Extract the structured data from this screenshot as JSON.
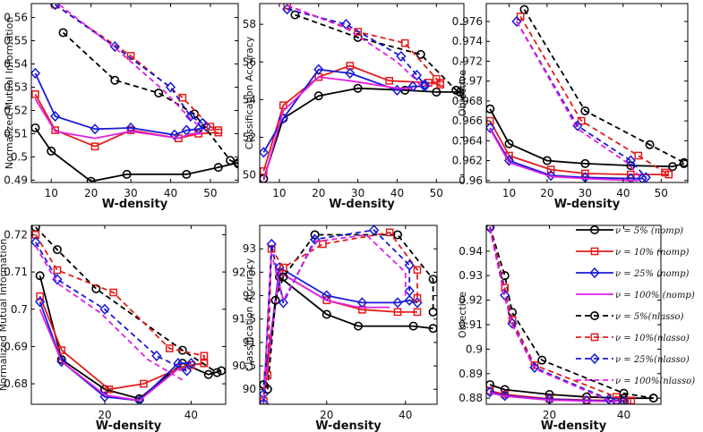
{
  "series_styles": [
    {
      "key": "k_nomp",
      "color": "#000000",
      "dash": false,
      "marker": "circle"
    },
    {
      "key": "r_nomp",
      "color": "#e41c1c",
      "dash": false,
      "marker": "square"
    },
    {
      "key": "b_nomp",
      "color": "#1a1ad8",
      "dash": false,
      "marker": "diamond"
    },
    {
      "key": "m_nomp",
      "color": "#e21ee2",
      "dash": false,
      "marker": "none"
    },
    {
      "key": "k_nl",
      "color": "#000000",
      "dash": true,
      "marker": "circle"
    },
    {
      "key": "r_nl",
      "color": "#e41c1c",
      "dash": true,
      "marker": "square"
    },
    {
      "key": "b_nl",
      "color": "#1a1ad8",
      "dash": true,
      "marker": "diamond"
    },
    {
      "key": "m_nl",
      "color": "#e21ee2",
      "dash": true,
      "marker": "none"
    }
  ],
  "legend": [
    "ν = 5% (nomp)",
    "ν = 10% (nomp)",
    "ν = 25% (nomp)",
    "ν = 100% (nomp)",
    "ν = 5%(nlasso)",
    "ν = 10%(nlasso)",
    "ν = 25%(nlasso)",
    "ν = 100%(nlasso)"
  ],
  "chart_data": [
    {
      "type": "line",
      "xlabel": "W-density",
      "ylabel": "Normalized Mutual Information",
      "xlim": [
        5,
        57
      ],
      "ylim": [
        0.489,
        0.566
      ],
      "xticks": [
        10,
        20,
        30,
        40,
        50
      ],
      "yticks": [
        0.49,
        0.5,
        0.51,
        0.52,
        0.53,
        0.54,
        0.55,
        0.56
      ],
      "ytick_labels": [
        "0.49",
        "0.5",
        "0.51",
        "0.52",
        "0.53",
        "0.54",
        "0.55",
        "0.56"
      ],
      "series": [
        {
          "name": "k_nomp",
          "x": [
            6,
            10,
            20,
            29,
            44,
            52,
            57
          ],
          "y": [
            0.5125,
            0.5025,
            0.4895,
            0.4925,
            0.4925,
            0.4955,
            0.4975
          ]
        },
        {
          "name": "r_nomp",
          "x": [
            6,
            11,
            21,
            30,
            42,
            47,
            52
          ],
          "y": [
            0.527,
            0.5115,
            0.5045,
            0.5115,
            0.508,
            0.51,
            0.5105
          ]
        },
        {
          "name": "b_nomp",
          "x": [
            6,
            11,
            21,
            30,
            41,
            44,
            47,
            49
          ],
          "y": [
            0.536,
            0.5175,
            0.512,
            0.5125,
            0.5095,
            0.5115,
            0.512,
            0.513
          ]
        },
        {
          "name": "m_nomp",
          "x": [
            6,
            11,
            21,
            30,
            42,
            45,
            48
          ],
          "y": [
            0.525,
            0.511,
            0.508,
            0.511,
            0.508,
            0.51,
            0.51
          ]
        },
        {
          "name": "k_nl",
          "x": [
            13,
            26,
            37,
            46,
            55,
            57
          ],
          "y": [
            0.5535,
            0.533,
            0.5275,
            0.5185,
            0.4985,
            0.497
          ]
        },
        {
          "name": "r_nl",
          "x": [
            11,
            30,
            43,
            50,
            52
          ],
          "y": [
            0.5655,
            0.5435,
            0.5255,
            0.513,
            0.5115
          ]
        },
        {
          "name": "b_nl",
          "x": [
            11,
            26,
            40,
            45,
            48
          ],
          "y": [
            0.5655,
            0.5475,
            0.53,
            0.5175,
            0.5145
          ]
        },
        {
          "name": "m_nl",
          "x": [
            12,
            26,
            38,
            45,
            47
          ],
          "y": [
            0.5655,
            0.547,
            0.529,
            0.5165,
            0.5135
          ]
        }
      ]
    },
    {
      "type": "line",
      "xlabel": "W-density",
      "ylabel": "Classification Accuracy",
      "xlim": [
        5,
        57
      ],
      "ylim": [
        49.6,
        59.1
      ],
      "xticks": [
        10,
        20,
        30,
        40,
        50
      ],
      "yticks": [
        50,
        52,
        54,
        56,
        58
      ],
      "ytick_labels": [
        "50",
        "52",
        "54",
        "56",
        "58"
      ],
      "series": [
        {
          "name": "k_nomp",
          "x": [
            6,
            11,
            20,
            30,
            42,
            50,
            56
          ],
          "y": [
            49.8,
            53.0,
            54.2,
            54.6,
            54.5,
            54.4,
            54.4
          ]
        },
        {
          "name": "r_nomp",
          "x": [
            6,
            11,
            20,
            28,
            38,
            48,
            51
          ],
          "y": [
            50.2,
            53.7,
            55.2,
            55.8,
            55.0,
            54.9,
            54.8
          ]
        },
        {
          "name": "b_nomp",
          "x": [
            6,
            11,
            20,
            28,
            40,
            44,
            47
          ],
          "y": [
            51.2,
            53.0,
            55.6,
            55.4,
            54.5,
            54.7,
            54.7
          ]
        },
        {
          "name": "m_nomp",
          "x": [
            6,
            11,
            20,
            28,
            40,
            44
          ],
          "y": [
            49.7,
            53.4,
            55.2,
            55.0,
            54.6,
            54.6
          ]
        },
        {
          "name": "k_nl",
          "x": [
            14,
            30,
            46,
            55,
            57
          ],
          "y": [
            58.5,
            57.3,
            56.4,
            54.5,
            54.3
          ]
        },
        {
          "name": "r_nl",
          "x": [
            12,
            30,
            42,
            50,
            51
          ],
          "y": [
            59.0,
            57.6,
            57.0,
            55.1,
            54.9
          ]
        },
        {
          "name": "b_nl",
          "x": [
            12,
            27,
            41,
            45,
            47
          ],
          "y": [
            58.8,
            58.0,
            56.3,
            55.3,
            54.8
          ]
        },
        {
          "name": "m_nl",
          "x": [
            12,
            27,
            40,
            45,
            46
          ],
          "y": [
            59.0,
            57.8,
            56.0,
            55.0,
            54.7
          ]
        }
      ]
    },
    {
      "type": "line",
      "xlabel": "W-density",
      "ylabel": "Objective",
      "xlim": [
        4,
        57
      ],
      "ylim": [
        0.9598,
        0.9778
      ],
      "xticks": [
        10,
        20,
        30,
        40,
        50
      ],
      "yticks": [
        0.96,
        0.962,
        0.964,
        0.966,
        0.968,
        0.97,
        0.972,
        0.974,
        0.976
      ],
      "ytick_labels": [
        "0.96",
        "0.962",
        "0.964",
        "0.966",
        "0.968",
        "0.97",
        "0.972",
        "0.974",
        "0.976"
      ],
      "series": [
        {
          "name": "k_nomp",
          "x": [
            5,
            10,
            20,
            30,
            42,
            53,
            56
          ],
          "y": [
            0.9672,
            0.9637,
            0.962,
            0.9617,
            0.9615,
            0.9614,
            0.9617
          ]
        },
        {
          "name": "r_nomp",
          "x": [
            5,
            10,
            21,
            30,
            42,
            52
          ],
          "y": [
            0.966,
            0.9625,
            0.9611,
            0.9607,
            0.9606,
            0.9606
          ]
        },
        {
          "name": "b_nomp",
          "x": [
            5,
            10,
            21,
            30,
            42,
            45
          ],
          "y": [
            0.9653,
            0.962,
            0.9605,
            0.9603,
            0.9602,
            0.9602
          ]
        },
        {
          "name": "m_nomp",
          "x": [
            5,
            10,
            21,
            30,
            42,
            44
          ],
          "y": [
            0.9652,
            0.9618,
            0.9604,
            0.9602,
            0.96,
            0.96
          ]
        },
        {
          "name": "k_nl",
          "x": [
            14,
            30,
            47,
            56
          ],
          "y": [
            0.9772,
            0.967,
            0.9636,
            0.9618
          ]
        },
        {
          "name": "r_nl",
          "x": [
            13,
            29,
            44,
            51
          ],
          "y": [
            0.9765,
            0.966,
            0.9625,
            0.9608
          ]
        },
        {
          "name": "b_nl",
          "x": [
            12,
            28,
            42,
            46
          ],
          "y": [
            0.976,
            0.9655,
            0.962,
            0.9603
          ]
        },
        {
          "name": "m_nl",
          "x": [
            12,
            28,
            41,
            45
          ],
          "y": [
            0.976,
            0.9652,
            0.9618,
            0.9601
          ]
        }
      ]
    },
    {
      "type": "line",
      "xlabel": "W-density",
      "ylabel": "Normalized Mutual Information",
      "xlim": [
        3,
        48
      ],
      "ylim": [
        0.6745,
        0.7225
      ],
      "xticks": [
        20,
        40
      ],
      "yticks": [
        0.68,
        0.69,
        0.7,
        0.71,
        0.72
      ],
      "ytick_labels": [
        "0.68",
        "0.69",
        "0.7",
        "0.71",
        "0.72"
      ],
      "series": [
        {
          "name": "k_nomp",
          "x": [
            5,
            10,
            20,
            28,
            38,
            44,
            47
          ],
          "y": [
            0.709,
            0.6865,
            0.6785,
            0.676,
            0.6855,
            0.6825,
            0.6835
          ]
        },
        {
          "name": "r_nomp",
          "x": [
            5,
            10,
            21,
            29,
            38,
            40,
            43
          ],
          "y": [
            0.7035,
            0.689,
            0.6785,
            0.68,
            0.6845,
            0.685,
            0.6855
          ]
        },
        {
          "name": "b_nomp",
          "x": [
            5,
            10,
            20,
            28,
            37,
            40
          ],
          "y": [
            0.702,
            0.686,
            0.6765,
            0.6755,
            0.6855,
            0.6855
          ]
        },
        {
          "name": "m_nomp",
          "x": [
            5,
            10,
            20,
            28,
            37,
            39
          ],
          "y": [
            0.7,
            0.686,
            0.677,
            0.6755,
            0.684,
            0.6835
          ]
        },
        {
          "name": "k_nl",
          "x": [
            4,
            9,
            18,
            38,
            46
          ],
          "y": [
            0.722,
            0.716,
            0.7055,
            0.689,
            0.683
          ]
        },
        {
          "name": "r_nl",
          "x": [
            4,
            9,
            22,
            35,
            43,
            43
          ],
          "y": [
            0.72,
            0.7105,
            0.7045,
            0.6895,
            0.6875,
            0.6855
          ]
        },
        {
          "name": "b_nl",
          "x": [
            4,
            9,
            20,
            32,
            39
          ],
          "y": [
            0.718,
            0.708,
            0.7,
            0.6875,
            0.6835
          ]
        },
        {
          "name": "m_nl",
          "x": [
            4,
            9,
            19,
            30,
            38
          ],
          "y": [
            0.717,
            0.707,
            0.699,
            0.6865,
            0.681
          ]
        }
      ]
    },
    {
      "type": "line",
      "xlabel": "W-density",
      "ylabel": "Classification Accuracy",
      "xlim": [
        3,
        48
      ],
      "ylim": [
        89.68,
        93.5
      ],
      "xticks": [
        20,
        40
      ],
      "yticks": [
        90,
        90.5,
        91,
        91.5,
        92,
        92.5,
        93
      ],
      "ytick_labels": [
        "90",
        "90.5",
        "91",
        "91.5",
        "92",
        "92.5",
        "93"
      ],
      "series": [
        {
          "name": "k_nomp",
          "x": [
            4,
            8,
            20,
            28,
            42,
            47
          ],
          "y": [
            90.1,
            92.4,
            91.6,
            91.35,
            91.35,
            91.3
          ]
        },
        {
          "name": "r_nomp",
          "x": [
            4,
            8,
            20,
            29,
            38,
            43
          ],
          "y": [
            89.75,
            92.5,
            91.9,
            91.7,
            91.65,
            91.65
          ]
        },
        {
          "name": "b_nomp",
          "x": [
            4,
            8,
            20,
            29,
            38,
            41,
            43
          ],
          "y": [
            89.9,
            92.6,
            92.0,
            91.85,
            91.85,
            91.9,
            91.85
          ]
        },
        {
          "name": "m_nomp",
          "x": [
            4,
            8,
            20,
            28,
            36
          ],
          "y": [
            89.85,
            92.5,
            91.9,
            91.75,
            91.75
          ]
        },
        {
          "name": "k_nl",
          "x": [
            5,
            7,
            9,
            17,
            38,
            47,
            47
          ],
          "y": [
            90.0,
            91.9,
            92.4,
            93.3,
            93.3,
            92.35,
            91.65
          ]
        },
        {
          "name": "r_nl",
          "x": [
            5,
            6,
            9,
            19,
            36,
            43,
            43
          ],
          "y": [
            90.3,
            93.0,
            92.6,
            93.1,
            93.35,
            92.55,
            91.95
          ]
        },
        {
          "name": "b_nl",
          "x": [
            4,
            6,
            9,
            17,
            32,
            41,
            41
          ],
          "y": [
            89.7,
            93.1,
            91.85,
            93.2,
            93.4,
            92.65,
            92.1
          ]
        },
        {
          "name": "m_nl",
          "x": [
            4,
            6,
            9,
            17,
            30,
            40,
            40
          ],
          "y": [
            89.8,
            92.9,
            91.9,
            93.15,
            93.3,
            92.5,
            92.0
          ]
        }
      ]
    },
    {
      "type": "line",
      "xlabel": "W-density",
      "ylabel": "Objective",
      "xlim": [
        3,
        50
      ],
      "ylim": [
        0.8775,
        0.9505
      ],
      "xticks": [
        20,
        40
      ],
      "yticks": [
        0.88,
        0.89,
        0.9,
        0.91,
        0.92,
        0.93,
        0.94
      ],
      "ytick_labels": [
        "0.88",
        "0.89",
        "0.9",
        "0.91",
        "0.92",
        "0.93",
        "0.94"
      ],
      "series": [
        {
          "name": "k_nomp",
          "x": [
            4,
            8,
            20,
            30,
            40,
            48
          ],
          "y": [
            0.8855,
            0.8835,
            0.8815,
            0.8805,
            0.88,
            0.88
          ]
        },
        {
          "name": "r_nomp",
          "x": [
            4,
            8,
            20,
            30,
            38,
            41
          ],
          "y": [
            0.883,
            0.8815,
            0.8797,
            0.8792,
            0.879,
            0.879
          ]
        },
        {
          "name": "b_nomp",
          "x": [
            4,
            8,
            20,
            30,
            38
          ],
          "y": [
            0.8825,
            0.881,
            0.8795,
            0.879,
            0.8788
          ]
        },
        {
          "name": "m_nomp",
          "x": [
            4,
            8,
            20,
            30,
            38
          ],
          "y": [
            0.8822,
            0.8808,
            0.8792,
            0.8788,
            0.8786
          ]
        },
        {
          "name": "k_nl",
          "x": [
            4,
            8,
            10,
            18,
            40,
            48
          ],
          "y": [
            0.95,
            0.93,
            0.915,
            0.8955,
            0.882,
            0.88
          ]
        },
        {
          "name": "r_nl",
          "x": [
            4,
            8,
            10,
            16,
            38,
            42
          ],
          "y": [
            0.95,
            0.925,
            0.912,
            0.8935,
            0.8805,
            0.879
          ]
        },
        {
          "name": "b_nl",
          "x": [
            4,
            8,
            10,
            16,
            36,
            40
          ],
          "y": [
            0.9495,
            0.922,
            0.9105,
            0.8925,
            0.8795,
            0.8788
          ]
        },
        {
          "name": "m_nl",
          "x": [
            4,
            8,
            10,
            16,
            36,
            40
          ],
          "y": [
            0.9492,
            0.921,
            0.91,
            0.892,
            0.879,
            0.8786
          ]
        }
      ]
    }
  ]
}
